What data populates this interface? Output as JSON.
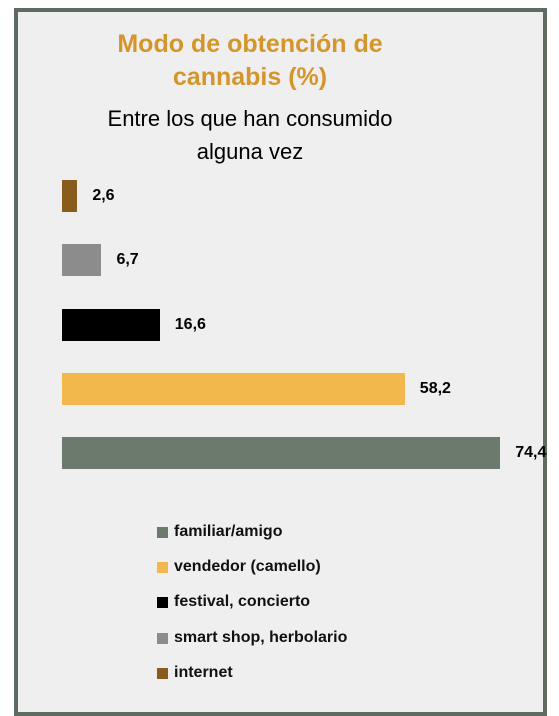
{
  "chart_data": {
    "type": "bar",
    "orientation": "horizontal",
    "title": "Modo de obtención de cannabis (%)",
    "subtitle": "Entre los que han consumido alguna vez",
    "categories": [
      "familiar/amigo",
      "vendedor (camello)",
      "festival, concierto",
      "smart shop, herbolario",
      "internet"
    ],
    "values": [
      74.4,
      58.2,
      16.6,
      6.7,
      2.6
    ],
    "value_labels": [
      "74,4",
      "58,2",
      "16,6",
      "6,7",
      "2,6"
    ],
    "colors": [
      "#6b7a6c",
      "#f2b84b",
      "#000000",
      "#8c8c8c",
      "#8a5c1c"
    ]
  }
}
